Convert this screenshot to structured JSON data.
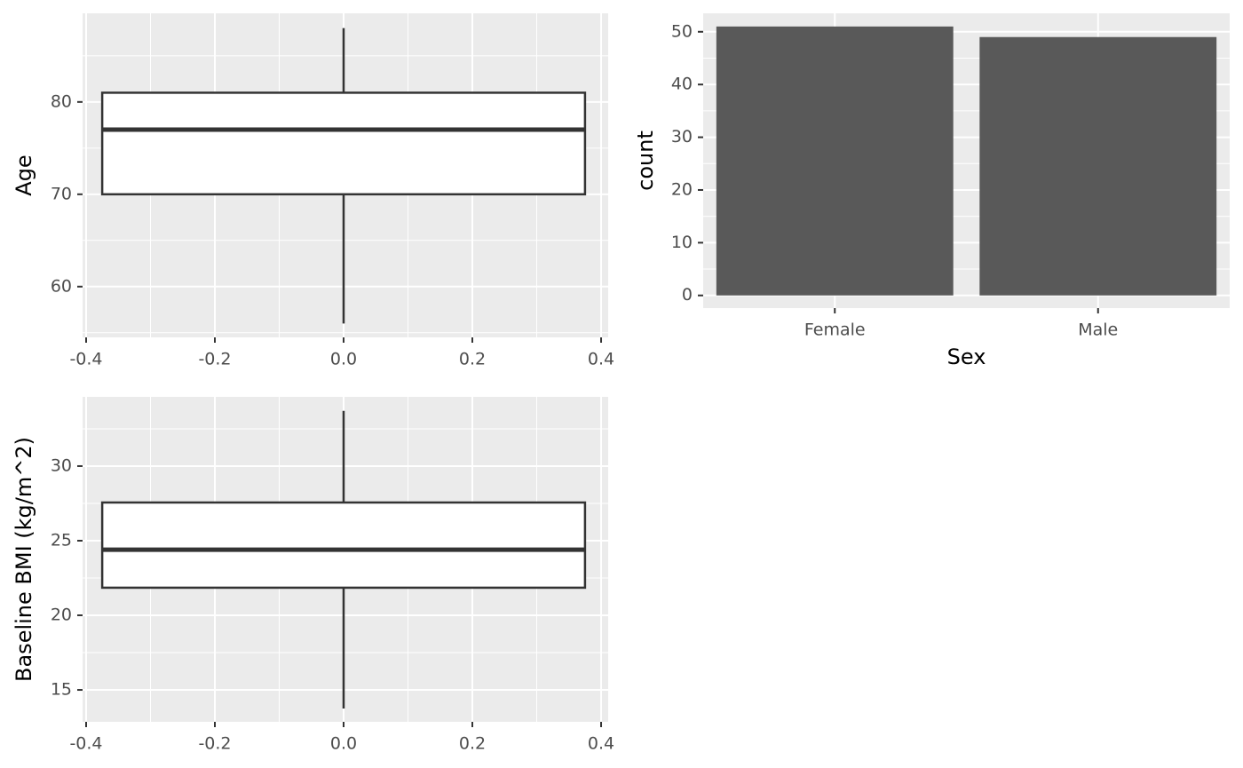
{
  "chart_data": [
    {
      "type": "boxplot",
      "y_label": "Age",
      "boxes": [
        {
          "x": 0,
          "low": 56,
          "q1": 70,
          "median": 77,
          "q3": 81,
          "high": 88
        }
      ],
      "xlim": [
        -0.4055,
        0.411
      ],
      "xticks": [
        -0.4,
        -0.2,
        {
          "value": 0,
          "label": "0.0"
        },
        0.2,
        0.4
      ],
      "ylim": [
        54.5,
        89.6
      ],
      "yticks": [
        60,
        70,
        80
      ],
      "grid": true,
      "box_color": "#333333",
      "box_fill": "#ffffff"
    },
    {
      "type": "bar",
      "x_label": "Sex",
      "y_label": "count",
      "categories": [
        "Female",
        "Male"
      ],
      "values": [
        51,
        49
      ],
      "color": "#595959",
      "ylim": [
        -2.4,
        53.5
      ],
      "yticks": [
        0,
        10,
        20,
        30,
        40,
        50
      ],
      "grid": true
    },
    {
      "type": "boxplot",
      "y_label": "Baseline BMI (kg/m^2)",
      "boxes": [
        {
          "x": 0,
          "low": 13.75,
          "q1": 21.85,
          "median": 24.4,
          "q3": 27.56,
          "high": 33.7
        }
      ],
      "xlim": [
        -0.4055,
        0.411
      ],
      "xticks": [
        -0.4,
        -0.2,
        {
          "value": 0,
          "label": "0.0"
        },
        0.2,
        0.4
      ],
      "ylim": [
        12.86,
        34.64
      ],
      "yticks": [
        15,
        20,
        25,
        30
      ],
      "grid": true,
      "box_color": "#333333",
      "box_fill": "#ffffff"
    }
  ]
}
